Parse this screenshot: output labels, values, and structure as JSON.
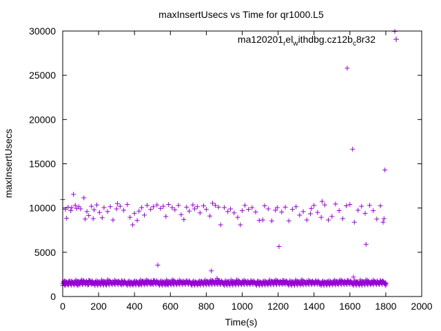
{
  "chart_data": {
    "type": "scatter",
    "title": "maxInsertUsecs vs Time for qr1000.L5",
    "xlabel": "Time(s)",
    "ylabel": "maxInsertUsecs",
    "xlim": [
      0,
      2000
    ],
    "ylim": [
      0,
      30000
    ],
    "x_ticks": [
      0,
      200,
      400,
      600,
      800,
      1000,
      1200,
      1400,
      1600,
      1800,
      2000
    ],
    "y_ticks": [
      0,
      5000,
      10000,
      15000,
      20000,
      25000,
      30000
    ],
    "grid": false,
    "legend_position": "top-right",
    "marker": "+",
    "series": [
      {
        "name_parts": {
          "base": "ma120201",
          "sub1": "r",
          "mid1": "el",
          "sub2": "w",
          "mid2": "ithdbg.cz12b",
          "sub3": "c",
          "tail": "8r32"
        },
        "color": "#9400d3",
        "points": [
          [
            0,
            10950
          ],
          [
            3,
            1650
          ],
          [
            6,
            1450
          ],
          [
            10,
            1300
          ],
          [
            12,
            1750
          ],
          [
            15,
            9850
          ],
          [
            18,
            1550
          ],
          [
            22,
            8850
          ],
          [
            25,
            1400
          ],
          [
            30,
            10100
          ],
          [
            33,
            1700
          ],
          [
            40,
            1500
          ],
          [
            45,
            9700
          ],
          [
            50,
            10050
          ],
          [
            55,
            1600
          ],
          [
            60,
            11550
          ],
          [
            65,
            1350
          ],
          [
            70,
            10300
          ],
          [
            78,
            9950
          ],
          [
            80,
            1650
          ],
          [
            85,
            1250
          ],
          [
            90,
            10150
          ],
          [
            95,
            1550
          ],
          [
            100,
            9900
          ],
          [
            105,
            1750
          ],
          [
            110,
            1400
          ],
          [
            118,
            11150
          ],
          [
            120,
            1600
          ],
          [
            125,
            8750
          ],
          [
            130,
            1500
          ],
          [
            135,
            9600
          ],
          [
            140,
            1300
          ],
          [
            145,
            9150
          ],
          [
            150,
            1700
          ],
          [
            160,
            10200
          ],
          [
            165,
            1450
          ],
          [
            170,
            8800
          ],
          [
            175,
            9800
          ],
          [
            180,
            1600
          ],
          [
            190,
            10350
          ],
          [
            195,
            1400
          ],
          [
            205,
            9500
          ],
          [
            210,
            1550
          ],
          [
            220,
            8900
          ],
          [
            225,
            1650
          ],
          [
            230,
            10050
          ],
          [
            240,
            1350
          ],
          [
            250,
            9600
          ],
          [
            255,
            1500
          ],
          [
            265,
            10150
          ],
          [
            270,
            1600
          ],
          [
            280,
            8650
          ],
          [
            290,
            1450
          ],
          [
            300,
            9900
          ],
          [
            305,
            10500
          ],
          [
            310,
            1700
          ],
          [
            320,
            10200
          ],
          [
            330,
            1300
          ],
          [
            340,
            9750
          ],
          [
            345,
            1550
          ],
          [
            360,
            10400
          ],
          [
            365,
            1650
          ],
          [
            375,
            8950
          ],
          [
            385,
            1400
          ],
          [
            390,
            8100
          ],
          [
            395,
            1600
          ],
          [
            400,
            9400
          ],
          [
            405,
            1500
          ],
          [
            415,
            8600
          ],
          [
            425,
            9650
          ],
          [
            430,
            1350
          ],
          [
            440,
            10050
          ],
          [
            445,
            1750
          ],
          [
            455,
            9200
          ],
          [
            460,
            1500
          ],
          [
            470,
            10300
          ],
          [
            480,
            1600
          ],
          [
            490,
            9850
          ],
          [
            495,
            1400
          ],
          [
            505,
            10150
          ],
          [
            515,
            1550
          ],
          [
            525,
            10350
          ],
          [
            530,
            3550
          ],
          [
            535,
            1650
          ],
          [
            545,
            9950
          ],
          [
            550,
            1450
          ],
          [
            560,
            10200
          ],
          [
            570,
            1600
          ],
          [
            575,
            9050
          ],
          [
            580,
            1350
          ],
          [
            590,
            10400
          ],
          [
            600,
            1550
          ],
          [
            610,
            10050
          ],
          [
            615,
            1700
          ],
          [
            625,
            9800
          ],
          [
            635,
            1450
          ],
          [
            645,
            10300
          ],
          [
            650,
            1600
          ],
          [
            660,
            9250
          ],
          [
            665,
            1500
          ],
          [
            675,
            8700
          ],
          [
            680,
            1650
          ],
          [
            690,
            10100
          ],
          [
            700,
            1400
          ],
          [
            705,
            9650
          ],
          [
            715,
            1550
          ],
          [
            725,
            10350
          ],
          [
            735,
            9900
          ],
          [
            740,
            1600
          ],
          [
            750,
            10150
          ],
          [
            760,
            1450
          ],
          [
            765,
            9450
          ],
          [
            775,
            1700
          ],
          [
            785,
            10250
          ],
          [
            795,
            1550
          ],
          [
            800,
            9850
          ],
          [
            810,
            1500
          ],
          [
            820,
            9100
          ],
          [
            828,
            2900
          ],
          [
            835,
            10550
          ],
          [
            840,
            1650
          ],
          [
            850,
            10300
          ],
          [
            860,
            2050
          ],
          [
            868,
            10100
          ],
          [
            875,
            1400
          ],
          [
            880,
            8100
          ],
          [
            890,
            1600
          ],
          [
            900,
            10050
          ],
          [
            910,
            1500
          ],
          [
            920,
            9600
          ],
          [
            925,
            1700
          ],
          [
            935,
            9900
          ],
          [
            945,
            1450
          ],
          [
            955,
            9450
          ],
          [
            965,
            1600
          ],
          [
            975,
            8950
          ],
          [
            985,
            1550
          ],
          [
            990,
            8100
          ],
          [
            1000,
            9700
          ],
          [
            1005,
            1650
          ],
          [
            1015,
            10300
          ],
          [
            1025,
            1500
          ],
          [
            1035,
            9850
          ],
          [
            1045,
            1400
          ],
          [
            1055,
            10050
          ],
          [
            1065,
            1600
          ],
          [
            1075,
            9550
          ],
          [
            1085,
            1700
          ],
          [
            1095,
            8600
          ],
          [
            1105,
            1500
          ],
          [
            1115,
            8650
          ],
          [
            1125,
            10250
          ],
          [
            1135,
            1550
          ],
          [
            1145,
            9900
          ],
          [
            1155,
            1450
          ],
          [
            1165,
            8550
          ],
          [
            1175,
            1650
          ],
          [
            1185,
            9750
          ],
          [
            1195,
            10050
          ],
          [
            1205,
            5650
          ],
          [
            1210,
            1600
          ],
          [
            1220,
            9550
          ],
          [
            1230,
            1500
          ],
          [
            1240,
            10100
          ],
          [
            1250,
            1700
          ],
          [
            1260,
            8550
          ],
          [
            1270,
            1400
          ],
          [
            1280,
            9850
          ],
          [
            1290,
            1550
          ],
          [
            1300,
            10150
          ],
          [
            1310,
            1650
          ],
          [
            1320,
            9200
          ],
          [
            1330,
            1450
          ],
          [
            1340,
            9600
          ],
          [
            1350,
            1600
          ],
          [
            1360,
            8650
          ],
          [
            1370,
            1500
          ],
          [
            1380,
            9350
          ],
          [
            1385,
            9950
          ],
          [
            1390,
            1700
          ],
          [
            1400,
            10300
          ],
          [
            1410,
            1550
          ],
          [
            1420,
            9500
          ],
          [
            1430,
            1400
          ],
          [
            1440,
            8950
          ],
          [
            1445,
            10750
          ],
          [
            1450,
            1600
          ],
          [
            1460,
            10350
          ],
          [
            1470,
            1650
          ],
          [
            1480,
            8650
          ],
          [
            1490,
            1500
          ],
          [
            1500,
            9050
          ],
          [
            1510,
            1550
          ],
          [
            1520,
            10450
          ],
          [
            1530,
            1450
          ],
          [
            1540,
            9700
          ],
          [
            1550,
            1600
          ],
          [
            1560,
            8800
          ],
          [
            1570,
            1700
          ],
          [
            1580,
            10250
          ],
          [
            1585,
            25800
          ],
          [
            1590,
            1550
          ],
          [
            1600,
            10400
          ],
          [
            1610,
            1500
          ],
          [
            1615,
            16650
          ],
          [
            1620,
            2200
          ],
          [
            1625,
            8400
          ],
          [
            1635,
            1600
          ],
          [
            1645,
            9750
          ],
          [
            1655,
            1450
          ],
          [
            1665,
            10200
          ],
          [
            1675,
            1650
          ],
          [
            1685,
            9400
          ],
          [
            1690,
            5900
          ],
          [
            1700,
            1550
          ],
          [
            1710,
            10300
          ],
          [
            1720,
            1500
          ],
          [
            1730,
            9700
          ],
          [
            1740,
            1600
          ],
          [
            1750,
            8750
          ],
          [
            1760,
            1450
          ],
          [
            1770,
            10250
          ],
          [
            1780,
            1700
          ],
          [
            1785,
            8400
          ],
          [
            1790,
            8800
          ],
          [
            1795,
            14300
          ],
          [
            1800,
            1550
          ],
          [
            1850,
            29950
          ]
        ]
      }
    ]
  }
}
